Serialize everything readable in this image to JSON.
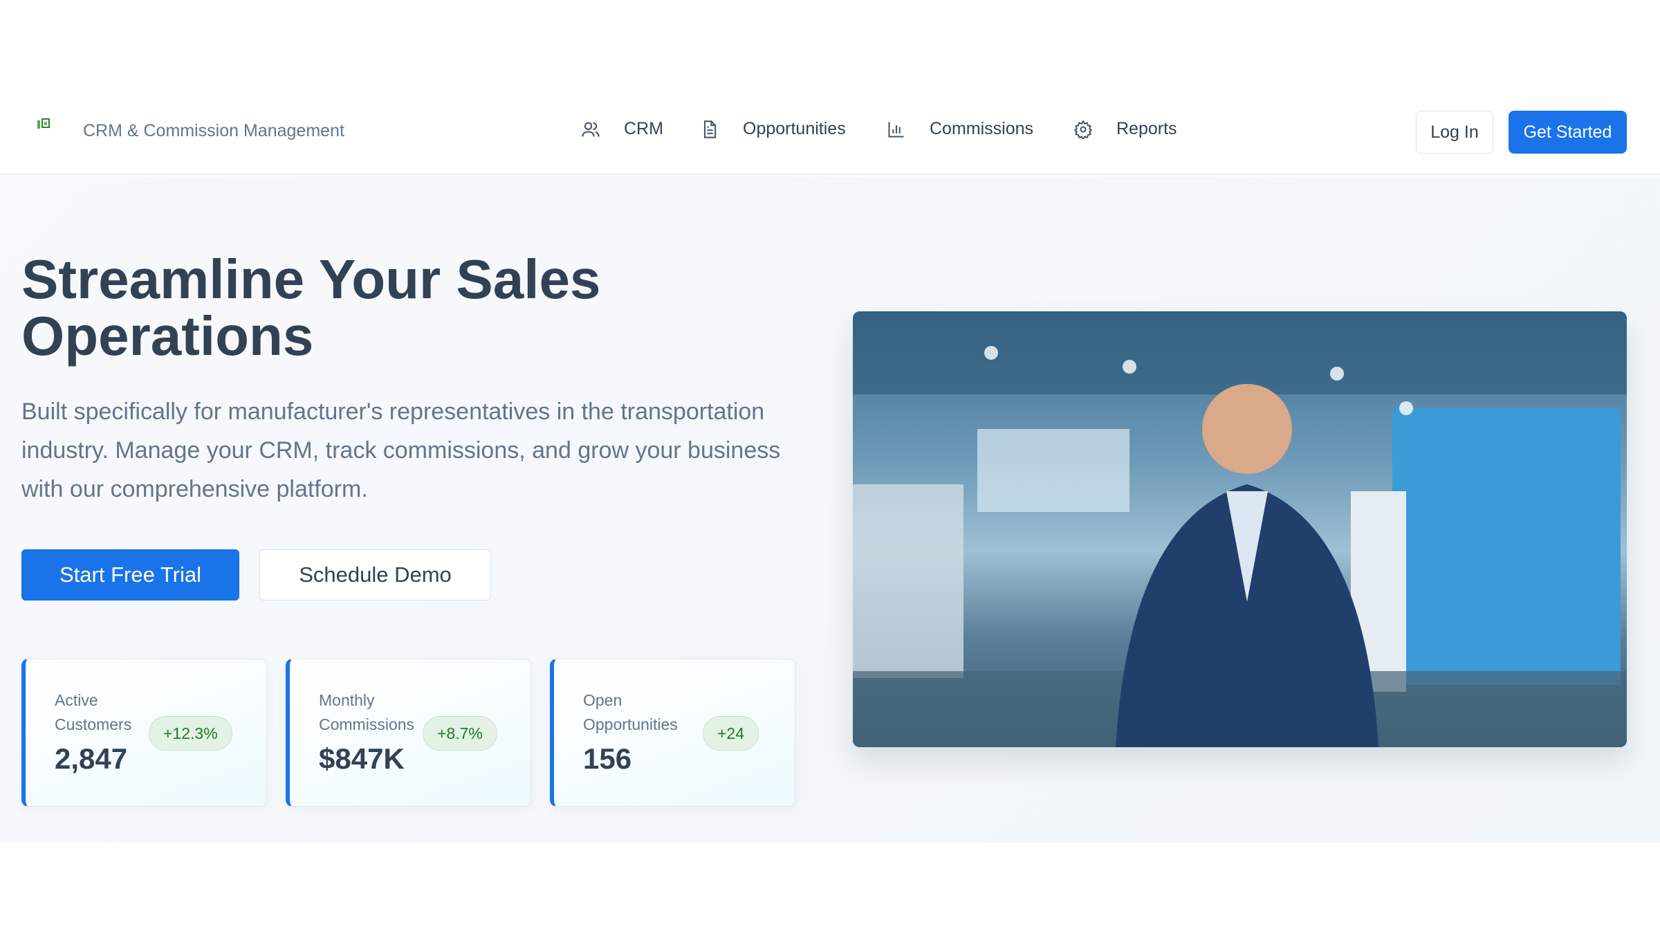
{
  "nav": {
    "brand": "CRM & Commission Management",
    "items": [
      {
        "label": "CRM",
        "icon": "users-icon"
      },
      {
        "label": "Opportunities",
        "icon": "document-icon"
      },
      {
        "label": "Commissions",
        "icon": "bar-chart-icon"
      },
      {
        "label": "Reports",
        "icon": "gear-icon"
      }
    ],
    "login": "Log In",
    "get_started": "Get Started"
  },
  "hero": {
    "title": "Streamline Your Sales Operations",
    "description": "Built specifically for manufacturer's representatives in the transportation industry. Manage your CRM, track commissions, and grow your business with our comprehensive platform.",
    "primary_cta": "Start Free Trial",
    "secondary_cta": "Schedule Demo",
    "image_alt": "Smiling businessman in a blue suit with arms crossed in a truck warehouse"
  },
  "stats": [
    {
      "label": "Active Customers",
      "value": "2,847",
      "change": "+12.3%"
    },
    {
      "label": "Monthly Commissions",
      "value": "$847K",
      "change": "+8.7%"
    },
    {
      "label": "Open Opportunities",
      "value": "156",
      "change": "+24"
    }
  ],
  "colors": {
    "accent": "#1a73e8",
    "positive": "#1e7b25",
    "text": "#334155",
    "muted": "#64748b"
  }
}
